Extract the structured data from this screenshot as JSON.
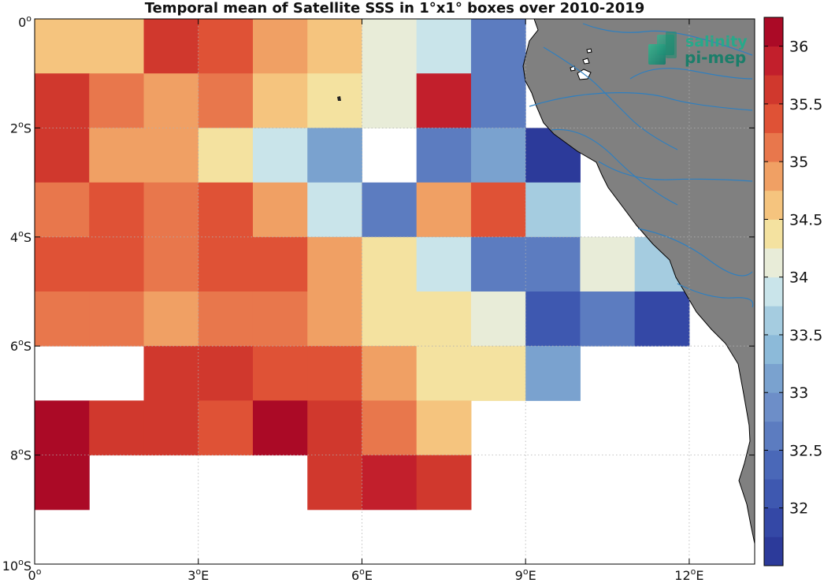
{
  "title": "Temporal mean of Satellite SSS in 1°x1° boxes over 2010-2019",
  "logo": {
    "line1": "salinity",
    "line2": "pi-mep",
    "icon": "salinity-pimep-logo"
  },
  "map": {
    "lon_range": [
      0,
      13.2
    ],
    "lat_range": [
      -10,
      0
    ],
    "grid": "dotted",
    "land_color": "#808080",
    "river_color": "#2f7fbf",
    "coast_color": "#000000",
    "x_ticks": [
      {
        "value": 0,
        "label": "0",
        "sup": "o",
        "suffix": ""
      },
      {
        "value": 3,
        "label": "3",
        "sup": "o",
        "suffix": "E"
      },
      {
        "value": 6,
        "label": "6",
        "sup": "o",
        "suffix": "E"
      },
      {
        "value": 9,
        "label": "9",
        "sup": "o",
        "suffix": "E"
      },
      {
        "value": 12,
        "label": "12",
        "sup": "o",
        "suffix": "E"
      }
    ],
    "y_ticks": [
      {
        "value": 0,
        "label": "0",
        "sup": "o",
        "suffix": ""
      },
      {
        "value": -2,
        "label": "2",
        "sup": "o",
        "suffix": "S"
      },
      {
        "value": -4,
        "label": "4",
        "sup": "o",
        "suffix": "S"
      },
      {
        "value": -6,
        "label": "6",
        "sup": "o",
        "suffix": "S"
      },
      {
        "value": -8,
        "label": "8",
        "sup": "o",
        "suffix": "S"
      },
      {
        "value": -10,
        "label": "10",
        "sup": "o",
        "suffix": "S"
      }
    ],
    "cells": [
      {
        "lon": 0,
        "lat": 0,
        "sss": 34.6
      },
      {
        "lon": 1,
        "lat": 0,
        "sss": 34.6
      },
      {
        "lon": 2,
        "lat": 0,
        "sss": 35.6
      },
      {
        "lon": 3,
        "lat": 0,
        "sss": 35.3
      },
      {
        "lon": 4,
        "lat": 0,
        "sss": 34.8
      },
      {
        "lon": 5,
        "lat": 0,
        "sss": 34.6
      },
      {
        "lon": 6,
        "lat": 0,
        "sss": 34.1
      },
      {
        "lon": 7,
        "lat": 0,
        "sss": 33.8
      },
      {
        "lon": 8,
        "lat": 0,
        "sss": 32.7
      },
      {
        "lon": 0,
        "lat": -1,
        "sss": 35.5
      },
      {
        "lon": 1,
        "lat": -1,
        "sss": 35.1
      },
      {
        "lon": 2,
        "lat": -1,
        "sss": 34.8
      },
      {
        "lon": 3,
        "lat": -1,
        "sss": 35.1
      },
      {
        "lon": 4,
        "lat": -1,
        "sss": 34.6
      },
      {
        "lon": 5,
        "lat": -1,
        "sss": 34.4
      },
      {
        "lon": 6,
        "lat": -1,
        "sss": 34.1
      },
      {
        "lon": 7,
        "lat": -1,
        "sss": 35.9
      },
      {
        "lon": 8,
        "lat": -1,
        "sss": 32.5
      },
      {
        "lon": 0,
        "lat": -2,
        "sss": 35.5
      },
      {
        "lon": 1,
        "lat": -2,
        "sss": 34.8
      },
      {
        "lon": 2,
        "lat": -2,
        "sss": 34.8
      },
      {
        "lon": 3,
        "lat": -2,
        "sss": 34.3
      },
      {
        "lon": 4,
        "lat": -2,
        "sss": 33.8
      },
      {
        "lon": 5,
        "lat": -2,
        "sss": 33.1
      },
      {
        "lon": 7,
        "lat": -2,
        "sss": 32.7
      },
      {
        "lon": 8,
        "lat": -2,
        "sss": 33.0
      },
      {
        "lon": 9,
        "lat": -2,
        "sss": 31.7
      },
      {
        "lon": 0,
        "lat": -3,
        "sss": 35.1
      },
      {
        "lon": 1,
        "lat": -3,
        "sss": 35.3
      },
      {
        "lon": 2,
        "lat": -3,
        "sss": 35.1
      },
      {
        "lon": 3,
        "lat": -3,
        "sss": 35.3
      },
      {
        "lon": 4,
        "lat": -3,
        "sss": 34.8
      },
      {
        "lon": 5,
        "lat": -3,
        "sss": 33.8
      },
      {
        "lon": 6,
        "lat": -3,
        "sss": 32.7
      },
      {
        "lon": 7,
        "lat": -3,
        "sss": 34.8
      },
      {
        "lon": 8,
        "lat": -3,
        "sss": 35.3
      },
      {
        "lon": 9,
        "lat": -3,
        "sss": 33.5
      },
      {
        "lon": 0,
        "lat": -4,
        "sss": 35.3
      },
      {
        "lon": 1,
        "lat": -4,
        "sss": 35.3
      },
      {
        "lon": 2,
        "lat": -4,
        "sss": 35.1
      },
      {
        "lon": 3,
        "lat": -4,
        "sss": 35.3
      },
      {
        "lon": 4,
        "lat": -4,
        "sss": 35.3
      },
      {
        "lon": 5,
        "lat": -4,
        "sss": 34.8
      },
      {
        "lon": 6,
        "lat": -4,
        "sss": 34.3
      },
      {
        "lon": 7,
        "lat": -4,
        "sss": 33.8
      },
      {
        "lon": 8,
        "lat": -4,
        "sss": 32.5
      },
      {
        "lon": 9,
        "lat": -4,
        "sss": 32.5
      },
      {
        "lon": 10,
        "lat": -4,
        "sss": 34.1
      },
      {
        "lon": 11,
        "lat": -4,
        "sss": 33.5
      },
      {
        "lon": 0,
        "lat": -5,
        "sss": 35.1
      },
      {
        "lon": 1,
        "lat": -5,
        "sss": 35.1
      },
      {
        "lon": 2,
        "lat": -5,
        "sss": 34.8
      },
      {
        "lon": 3,
        "lat": -5,
        "sss": 35.1
      },
      {
        "lon": 4,
        "lat": -5,
        "sss": 35.1
      },
      {
        "lon": 5,
        "lat": -5,
        "sss": 34.8
      },
      {
        "lon": 6,
        "lat": -5,
        "sss": 34.3
      },
      {
        "lon": 7,
        "lat": -5,
        "sss": 34.3
      },
      {
        "lon": 8,
        "lat": -5,
        "sss": 34.1
      },
      {
        "lon": 9,
        "lat": -5,
        "sss": 32.2
      },
      {
        "lon": 10,
        "lat": -5,
        "sss": 32.7
      },
      {
        "lon": 11,
        "lat": -5,
        "sss": 31.9
      },
      {
        "lon": 2,
        "lat": -6,
        "sss": 35.7
      },
      {
        "lon": 3,
        "lat": -6,
        "sss": 35.5
      },
      {
        "lon": 4,
        "lat": -6,
        "sss": 35.3
      },
      {
        "lon": 5,
        "lat": -6,
        "sss": 35.3
      },
      {
        "lon": 6,
        "lat": -6,
        "sss": 34.8
      },
      {
        "lon": 7,
        "lat": -6,
        "sss": 34.3
      },
      {
        "lon": 8,
        "lat": -6,
        "sss": 34.3
      },
      {
        "lon": 9,
        "lat": -6,
        "sss": 33.0
      },
      {
        "lon": 0,
        "lat": -7,
        "sss": 36.2
      },
      {
        "lon": 1,
        "lat": -7,
        "sss": 35.7
      },
      {
        "lon": 2,
        "lat": -7,
        "sss": 35.5
      },
      {
        "lon": 3,
        "lat": -7,
        "sss": 35.3
      },
      {
        "lon": 4,
        "lat": -7,
        "sss": 36.2
      },
      {
        "lon": 5,
        "lat": -7,
        "sss": 35.7
      },
      {
        "lon": 6,
        "lat": -7,
        "sss": 35.1
      },
      {
        "lon": 7,
        "lat": -7,
        "sss": 34.6
      },
      {
        "lon": 0,
        "lat": -8,
        "sss": 36.2
      },
      {
        "lon": 5,
        "lat": -8,
        "sss": 35.7
      },
      {
        "lon": 6,
        "lat": -8,
        "sss": 35.9
      },
      {
        "lon": 7,
        "lat": -8,
        "sss": 35.7
      }
    ]
  },
  "colorbar": {
    "min": 31.5,
    "max": 36.25,
    "steps": 19,
    "ticks": [
      {
        "value": 32,
        "label": "32"
      },
      {
        "value": 32.5,
        "label": "32.5"
      },
      {
        "value": 33,
        "label": "33"
      },
      {
        "value": 33.5,
        "label": "33.5"
      },
      {
        "value": 34,
        "label": "34"
      },
      {
        "value": 34.5,
        "label": "34.5"
      },
      {
        "value": 35,
        "label": "35"
      },
      {
        "value": 35.5,
        "label": "35.5"
      },
      {
        "value": 36,
        "label": "36"
      }
    ],
    "colors": [
      "#2c3a9a",
      "#3448a6",
      "#3e58b0",
      "#4a68b8",
      "#5c7cc0",
      "#6d8ec8",
      "#7aa2cf",
      "#8cbad9",
      "#a5cce0",
      "#c9e4ea",
      "#e8ecd8",
      "#f4e2a0",
      "#f5c47e",
      "#f0a064",
      "#e8774c",
      "#df5236",
      "#d0382d",
      "#c21f2c",
      "#ab0a26"
    ]
  }
}
